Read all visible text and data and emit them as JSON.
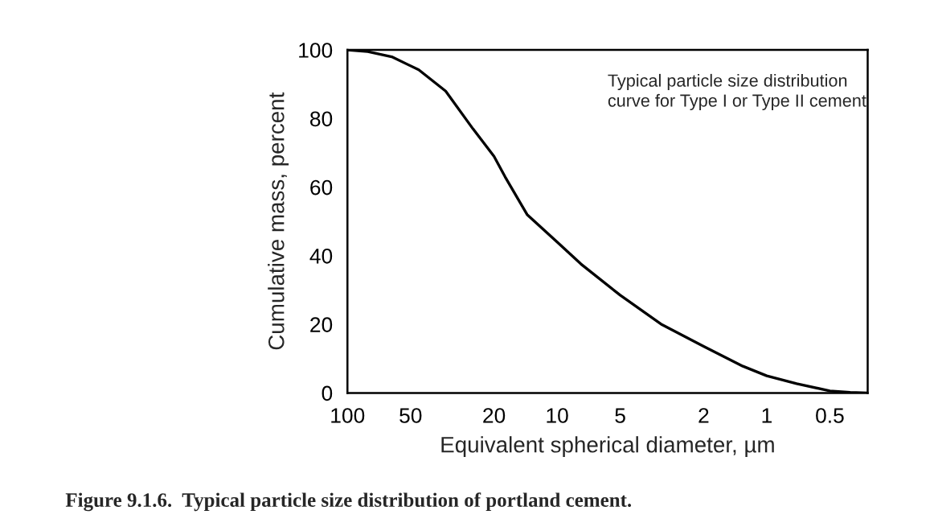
{
  "chart_data": {
    "type": "line",
    "xlabel": "Equivalent spherical diameter, µm",
    "ylabel": "Cumulative mass, percent",
    "annotations": [
      "Typical particle size distribution\ncurve for Type I or Type II cement",
      "Figure 9.1.6.  Typical particle size distribution of portland cement."
    ],
    "log": "x",
    "xlim": [
      100,
      0.33
    ],
    "ylim": [
      0,
      100
    ],
    "xticks": [
      100,
      50,
      20,
      10,
      5,
      2,
      1,
      0.5
    ],
    "yticks": [
      0,
      20,
      40,
      60,
      80,
      100
    ],
    "grid": false,
    "legend": false,
    "series": [
      {
        "color": "#000000",
        "x": [
          100,
          80,
          61.5,
          45.7,
          34,
          25.2,
          20,
          17.7,
          13.9,
          10,
          7.7,
          5,
          3.16,
          2,
          1.3,
          1,
          0.72,
          0.5,
          0.4,
          0.33
        ],
        "values": [
          100,
          99.5,
          98,
          94.2,
          88,
          77,
          69,
          63,
          52,
          44,
          37.6,
          28.5,
          19.9,
          13.6,
          7.8,
          5,
          2.7,
          0.6,
          0.2,
          0
        ]
      }
    ]
  }
}
